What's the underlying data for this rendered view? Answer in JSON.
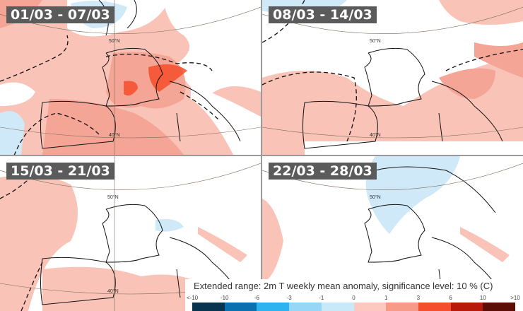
{
  "panels": [
    {
      "label": "01/03 - 07/03"
    },
    {
      "label": "08/03 - 14/03"
    },
    {
      "label": "15/03 - 21/03"
    },
    {
      "label": "22/03 - 28/03"
    }
  ],
  "latitude_labels": {
    "north": "50°N",
    "south": "40°N"
  },
  "legend": {
    "title": "Extended range: 2m T weekly mean anomaly, significance level: 10 % (C)",
    "tick_labels": [
      "<-10",
      "-10",
      "-6",
      "-3",
      "-1",
      "0",
      "1",
      "3",
      "6",
      "10",
      ">10"
    ],
    "colors": [
      "#08344f",
      "#0a70b0",
      "#2db4f0",
      "#96d6f6",
      "#c8e9f8",
      "#fcc8c0",
      "#f89a88",
      "#f44e2c",
      "#b81a0a",
      "#5c0e06"
    ]
  }
}
